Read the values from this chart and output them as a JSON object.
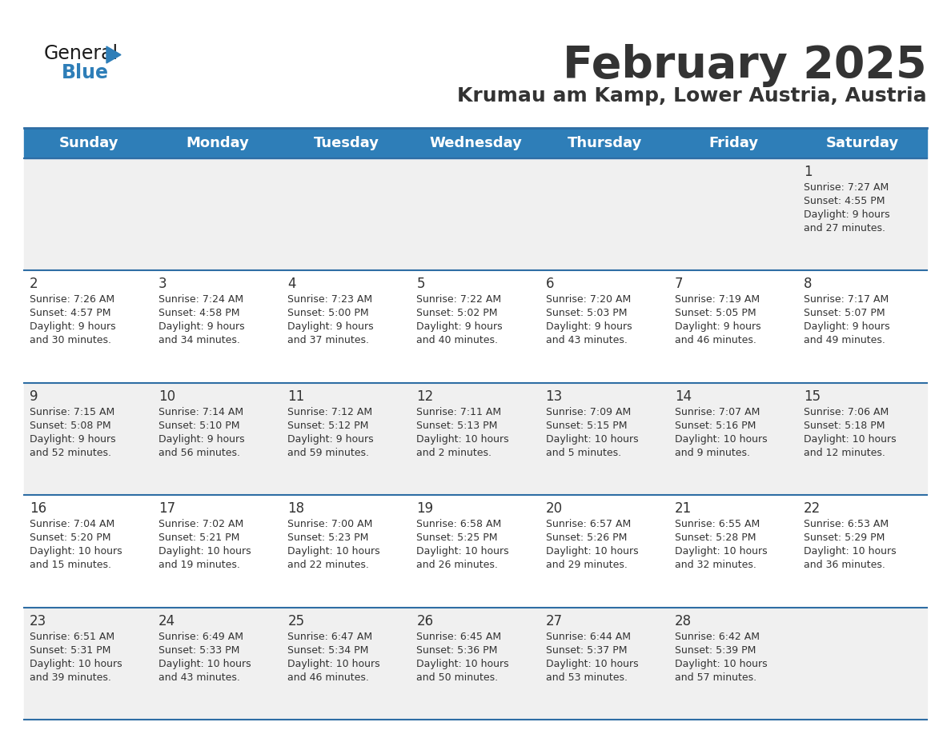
{
  "title": "February 2025",
  "subtitle": "Krumau am Kamp, Lower Austria, Austria",
  "days_of_week": [
    "Sunday",
    "Monday",
    "Tuesday",
    "Wednesday",
    "Thursday",
    "Friday",
    "Saturday"
  ],
  "header_bg": "#2E7EB8",
  "header_text": "#FFFFFF",
  "cell_bg_odd": "#F0F0F0",
  "cell_bg_even": "#FFFFFF",
  "separator_color": "#2E6DA4",
  "text_color": "#333333",
  "logo_color_general": "#1A1A1A",
  "logo_color_blue": "#2E7EB8",
  "logo_triangle_color": "#2E7EB8",
  "calendar_data": [
    [
      null,
      null,
      null,
      null,
      null,
      null,
      {
        "day": 1,
        "sunrise": "7:27 AM",
        "sunset": "4:55 PM",
        "daylight": "9 hours and 27 minutes."
      }
    ],
    [
      {
        "day": 2,
        "sunrise": "7:26 AM",
        "sunset": "4:57 PM",
        "daylight": "9 hours and 30 minutes."
      },
      {
        "day": 3,
        "sunrise": "7:24 AM",
        "sunset": "4:58 PM",
        "daylight": "9 hours and 34 minutes."
      },
      {
        "day": 4,
        "sunrise": "7:23 AM",
        "sunset": "5:00 PM",
        "daylight": "9 hours and 37 minutes."
      },
      {
        "day": 5,
        "sunrise": "7:22 AM",
        "sunset": "5:02 PM",
        "daylight": "9 hours and 40 minutes."
      },
      {
        "day": 6,
        "sunrise": "7:20 AM",
        "sunset": "5:03 PM",
        "daylight": "9 hours and 43 minutes."
      },
      {
        "day": 7,
        "sunrise": "7:19 AM",
        "sunset": "5:05 PM",
        "daylight": "9 hours and 46 minutes."
      },
      {
        "day": 8,
        "sunrise": "7:17 AM",
        "sunset": "5:07 PM",
        "daylight": "9 hours and 49 minutes."
      }
    ],
    [
      {
        "day": 9,
        "sunrise": "7:15 AM",
        "sunset": "5:08 PM",
        "daylight": "9 hours and 52 minutes."
      },
      {
        "day": 10,
        "sunrise": "7:14 AM",
        "sunset": "5:10 PM",
        "daylight": "9 hours and 56 minutes."
      },
      {
        "day": 11,
        "sunrise": "7:12 AM",
        "sunset": "5:12 PM",
        "daylight": "9 hours and 59 minutes."
      },
      {
        "day": 12,
        "sunrise": "7:11 AM",
        "sunset": "5:13 PM",
        "daylight": "10 hours and 2 minutes."
      },
      {
        "day": 13,
        "sunrise": "7:09 AM",
        "sunset": "5:15 PM",
        "daylight": "10 hours and 5 minutes."
      },
      {
        "day": 14,
        "sunrise": "7:07 AM",
        "sunset": "5:16 PM",
        "daylight": "10 hours and 9 minutes."
      },
      {
        "day": 15,
        "sunrise": "7:06 AM",
        "sunset": "5:18 PM",
        "daylight": "10 hours and 12 minutes."
      }
    ],
    [
      {
        "day": 16,
        "sunrise": "7:04 AM",
        "sunset": "5:20 PM",
        "daylight": "10 hours and 15 minutes."
      },
      {
        "day": 17,
        "sunrise": "7:02 AM",
        "sunset": "5:21 PM",
        "daylight": "10 hours and 19 minutes."
      },
      {
        "day": 18,
        "sunrise": "7:00 AM",
        "sunset": "5:23 PM",
        "daylight": "10 hours and 22 minutes."
      },
      {
        "day": 19,
        "sunrise": "6:58 AM",
        "sunset": "5:25 PM",
        "daylight": "10 hours and 26 minutes."
      },
      {
        "day": 20,
        "sunrise": "6:57 AM",
        "sunset": "5:26 PM",
        "daylight": "10 hours and 29 minutes."
      },
      {
        "day": 21,
        "sunrise": "6:55 AM",
        "sunset": "5:28 PM",
        "daylight": "10 hours and 32 minutes."
      },
      {
        "day": 22,
        "sunrise": "6:53 AM",
        "sunset": "5:29 PM",
        "daylight": "10 hours and 36 minutes."
      }
    ],
    [
      {
        "day": 23,
        "sunrise": "6:51 AM",
        "sunset": "5:31 PM",
        "daylight": "10 hours and 39 minutes."
      },
      {
        "day": 24,
        "sunrise": "6:49 AM",
        "sunset": "5:33 PM",
        "daylight": "10 hours and 43 minutes."
      },
      {
        "day": 25,
        "sunrise": "6:47 AM",
        "sunset": "5:34 PM",
        "daylight": "10 hours and 46 minutes."
      },
      {
        "day": 26,
        "sunrise": "6:45 AM",
        "sunset": "5:36 PM",
        "daylight": "10 hours and 50 minutes."
      },
      {
        "day": 27,
        "sunrise": "6:44 AM",
        "sunset": "5:37 PM",
        "daylight": "10 hours and 53 minutes."
      },
      {
        "day": 28,
        "sunrise": "6:42 AM",
        "sunset": "5:39 PM",
        "daylight": "10 hours and 57 minutes."
      },
      null
    ]
  ]
}
